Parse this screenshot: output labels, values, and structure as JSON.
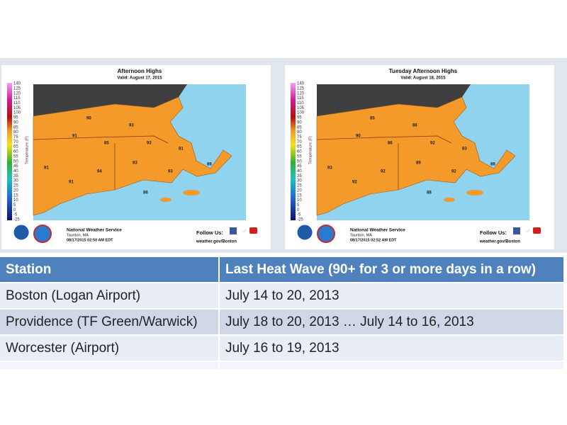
{
  "maps": [
    {
      "title": "Afternoon Highs",
      "valid": "Valid: August 17, 2015",
      "agency": "National Weather Service",
      "office": "Taunton, MA",
      "issued": "08/17/2015 02:50 AM EDT",
      "follow": "Follow Us:",
      "url": "weather.gov/Boston",
      "temps": [
        "91",
        "93",
        "91",
        "94",
        "93",
        "93",
        "91",
        "93",
        "81",
        "89",
        "85",
        "86",
        "90"
      ]
    },
    {
      "title": "Tuesday Afternoon Highs",
      "valid": "Valid: August 18, 2015",
      "agency": "National Weather Service",
      "office": "Taunton, MA",
      "issued": "08/17/2015 02:52 AM EDT",
      "follow": "Follow Us:",
      "url": "weather.gov/Boston",
      "temps": [
        "90",
        "86",
        "92",
        "92",
        "89",
        "92",
        "93",
        "92",
        "83",
        "89",
        "86",
        "88",
        "85"
      ]
    }
  ],
  "scale": {
    "label": "Temperature (F)",
    "ticks": [
      "140",
      "125",
      "120",
      "115",
      "110",
      "105",
      "100",
      "95",
      "90",
      "85",
      "80",
      "75",
      "70",
      "65",
      "60",
      "55",
      "50",
      "45",
      "40",
      "35",
      "30",
      "25",
      "20",
      "15",
      "10",
      "5",
      "0",
      "-5",
      "-25"
    ]
  },
  "table": {
    "header": [
      "Station",
      "Last Heat Wave (90+ for 3 or more days in a row)"
    ],
    "rows": [
      [
        "Boston (Logan Airport)",
        "July 14 to 20, 2013"
      ],
      [
        "Providence (TF Green/Warwick)",
        "July 18 to 20, 2013 … July 14 to 16, 2013"
      ],
      [
        "Worcester (Airport)",
        "July 16 to 19, 2013"
      ]
    ]
  }
}
